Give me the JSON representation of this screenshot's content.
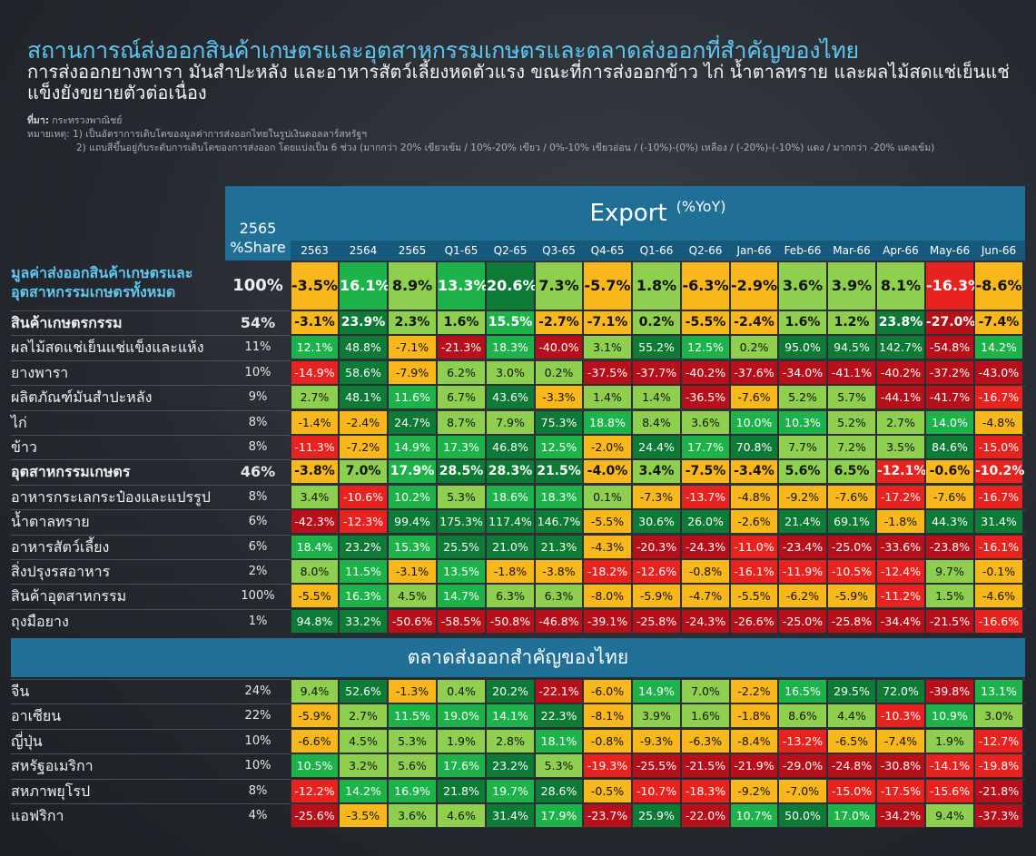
{
  "title": "สถานการณ์ส่งออกสินค้าเกษตรและอุตสาหกรรมเกษตรและตลาดส่งออกที่สำคัญของไทย",
  "subtitle": "การส่งออกยางพารา มันสำปะหลัง และอาหารสัตว์เลี้ยงหดตัวแรง ขณะที่การส่งออกข้าว ไก่ น้ำตาลทราย และผลไม้สดแช่เย็นแช่แข็งยังขยายตัวต่อเนื่อง",
  "notes": {
    "source_label": "ที่มา:",
    "source": "กระทรวงพาณิชย์",
    "note1_label": "หมายเหตุ:",
    "note1": "1) เป็นอัตราการเติบโตของมูลค่าการส่งออกไทยในรูปเงินดอลลาร์สหรัฐฯ",
    "note2": "2) แถบสีขึ้นอยู่กับระดับการเติบโตของการส่งออก โดยแบ่งเป็น 6 ช่วง (มากกว่า 20% เขียวเข้ม / 10%-20% เขียว / 0%-10% เขียวอ่อน / (-10%)-(0%) เหลือง / (-20%)-(-10%) แดง / มากกว่า -20% แดงเข้ม)"
  },
  "header": {
    "export": "Export",
    "unit": "(%YoY)",
    "share_line1": "2565",
    "share_line2": "%Share",
    "market_section": "ตลาดส่งออกสำคัญของไทย"
  },
  "colors": {
    "dark_green": "#0d7a35",
    "green": "#1db34a",
    "light_green": "#8fcf4f",
    "yellow": "#f8b81c",
    "red": "#e8231f",
    "dark_red": "#b8101b",
    "header_blue": "#1f6f97"
  },
  "chart_data": {
    "type": "table",
    "columns": [
      "2563",
      "2564",
      "2565",
      "Q1-65",
      "Q2-65",
      "Q3-65",
      "Q4-65",
      "Q1-66",
      "Q2-66",
      "Jan-66",
      "Feb-66",
      "Mar-66",
      "Apr-66",
      "May-66",
      "Jun-66"
    ],
    "rows": [
      {
        "label": "มูลค่าส่งออกสินค้าเกษตรและ",
        "label2": "อุตสาหกรรมเกษตรทั้งหมด",
        "share": "100%",
        "style": "top",
        "values": [
          "-3.5%",
          "16.1%",
          "8.9%",
          "13.3%",
          "20.6%",
          "7.3%",
          "-5.7%",
          "1.8%",
          "-6.3%",
          "-2.9%",
          "3.6%",
          "3.9%",
          "8.1%",
          "-16.3%",
          "-8.6%"
        ]
      },
      {
        "label": "สินค้าเกษตรกรรม",
        "share": "54%",
        "style": "bold",
        "values": [
          "-3.1%",
          "23.9%",
          "2.3%",
          "1.6%",
          "15.5%",
          "-2.7%",
          "-7.1%",
          "0.2%",
          "-5.5%",
          "-2.4%",
          "1.6%",
          "1.2%",
          "23.8%",
          "-27.0%",
          "-7.4%"
        ]
      },
      {
        "label": "ผลไม้สดแช่เย็นแช่แข็งและแห้ง",
        "share": "11%",
        "style": "normal",
        "values": [
          "12.1%",
          "48.8%",
          "-7.1%",
          "-21.3%",
          "18.3%",
          "-40.0%",
          "3.1%",
          "55.2%",
          "12.5%",
          "0.2%",
          "95.0%",
          "94.5%",
          "142.7%",
          "-54.8%",
          "14.2%"
        ]
      },
      {
        "label": "ยางพารา",
        "share": "10%",
        "style": "normal",
        "values": [
          "-14.9%",
          "58.6%",
          "-7.9%",
          "6.2%",
          "3.0%",
          "0.2%",
          "-37.5%",
          "-37.7%",
          "-40.2%",
          "-37.6%",
          "-34.0%",
          "-41.1%",
          "-40.2%",
          "-37.2%",
          "-43.0%"
        ]
      },
      {
        "label": "ผลิตภัณฑ์มันสำปะหลัง",
        "share": "9%",
        "style": "normal",
        "values": [
          "2.7%",
          "48.1%",
          "11.6%",
          "6.7%",
          "43.6%",
          "-3.3%",
          "1.4%",
          "1.4%",
          "-36.5%",
          "-7.6%",
          "5.2%",
          "5.7%",
          "-44.1%",
          "-41.7%",
          "-16.7%"
        ]
      },
      {
        "label": "ไก่",
        "share": "8%",
        "style": "normal",
        "values": [
          "-1.4%",
          "-2.4%",
          "24.7%",
          "8.7%",
          "7.9%",
          "75.3%",
          "18.8%",
          "8.4%",
          "3.6%",
          "10.0%",
          "10.3%",
          "5.2%",
          "2.7%",
          "14.0%",
          "-4.8%"
        ]
      },
      {
        "label": "ข้าว",
        "share": "8%",
        "style": "normal",
        "values": [
          "-11.3%",
          "-7.2%",
          "14.9%",
          "17.3%",
          "46.8%",
          "12.5%",
          "-2.0%",
          "24.4%",
          "17.7%",
          "70.8%",
          "7.7%",
          "7.2%",
          "3.5%",
          "84.6%",
          "-15.0%"
        ]
      },
      {
        "label": "อุตสาหกรรมเกษตร",
        "share": "46%",
        "style": "bold",
        "values": [
          "-3.8%",
          "7.0%",
          "17.9%",
          "28.5%",
          "28.3%",
          "21.5%",
          "-4.0%",
          "3.4%",
          "-7.5%",
          "-3.4%",
          "5.6%",
          "6.5%",
          "-12.1%",
          "-0.6%",
          "-10.2%"
        ]
      },
      {
        "label": "อาหารกระเลกระป๋องและแปรรูป",
        "share": "8%",
        "style": "normal",
        "values": [
          "3.4%",
          "-10.6%",
          "10.2%",
          "5.3%",
          "18.6%",
          "18.3%",
          "0.1%",
          "-7.3%",
          "-13.7%",
          "-4.8%",
          "-9.2%",
          "-7.6%",
          "-17.2%",
          "-7.6%",
          "-16.7%"
        ]
      },
      {
        "label": "น้ำตาลทราย",
        "share": "6%",
        "style": "normal",
        "values": [
          "-42.3%",
          "-12.3%",
          "99.4%",
          "175.3%",
          "117.4%",
          "146.7%",
          "-5.5%",
          "30.6%",
          "26.0%",
          "-2.6%",
          "21.4%",
          "69.1%",
          "-1.8%",
          "44.3%",
          "31.4%"
        ]
      },
      {
        "label": "อาหารสัตว์เลี้ยง",
        "share": "6%",
        "style": "normal",
        "values": [
          "18.4%",
          "23.2%",
          "15.3%",
          "25.5%",
          "21.0%",
          "21.3%",
          "-4.3%",
          "-20.3%",
          "-24.3%",
          "-11.0%",
          "-23.4%",
          "-25.0%",
          "-33.6%",
          "-23.8%",
          "-16.1%"
        ]
      },
      {
        "label": "สิ่งปรุงรสอาหาร",
        "share": "2%",
        "style": "normal",
        "values": [
          "8.0%",
          "11.5%",
          "-3.1%",
          "13.5%",
          "-1.8%",
          "-3.8%",
          "-18.2%",
          "-12.6%",
          "-0.8%",
          "-16.1%",
          "-11.9%",
          "-10.5%",
          "-12.4%",
          "9.7%",
          "-0.1%"
        ]
      },
      {
        "label": "สินค้าอุตสาหกรรม",
        "share": "100%",
        "style": "normal",
        "values": [
          "-5.5%",
          "16.3%",
          "4.5%",
          "14.7%",
          "6.3%",
          "6.3%",
          "-8.0%",
          "-5.9%",
          "-4.7%",
          "-5.5%",
          "-6.2%",
          "-5.9%",
          "-11.2%",
          "1.5%",
          "-4.6%"
        ]
      },
      {
        "label": "ถุงมือยาง",
        "share": "1%",
        "style": "normal",
        "values": [
          "94.8%",
          "33.2%",
          "-50.6%",
          "-58.5%",
          "-50.8%",
          "-46.8%",
          "-39.1%",
          "-25.8%",
          "-24.3%",
          "-26.6%",
          "-25.0%",
          "-25.8%",
          "-34.4%",
          "-21.5%",
          "-16.6%"
        ]
      }
    ],
    "market_rows": [
      {
        "label": "จีน",
        "share": "24%",
        "values": [
          "9.4%",
          "52.6%",
          "-1.3%",
          "0.4%",
          "20.2%",
          "-22.1%",
          "-6.0%",
          "14.9%",
          "7.0%",
          "-2.2%",
          "16.5%",
          "29.5%",
          "72.0%",
          "-39.8%",
          "13.1%"
        ]
      },
      {
        "label": "อาเซียน",
        "share": "22%",
        "values": [
          "-5.9%",
          "2.7%",
          "11.5%",
          "19.0%",
          "14.1%",
          "22.3%",
          "-8.1%",
          "3.9%",
          "1.6%",
          "-1.8%",
          "8.6%",
          "4.4%",
          "-10.3%",
          "10.9%",
          "3.0%"
        ]
      },
      {
        "label": "ญี่ปุ่น",
        "share": "10%",
        "values": [
          "-6.6%",
          "4.5%",
          "5.3%",
          "1.9%",
          "2.8%",
          "18.1%",
          "-0.8%",
          "-9.3%",
          "-6.3%",
          "-8.4%",
          "-13.2%",
          "-6.5%",
          "-7.4%",
          "1.9%",
          "-12.7%"
        ]
      },
      {
        "label": "สหรัฐอเมริกา",
        "share": "10%",
        "values": [
          "10.5%",
          "3.2%",
          "5.6%",
          "17.6%",
          "23.2%",
          "5.3%",
          "-19.3%",
          "-25.5%",
          "-21.5%",
          "-21.9%",
          "-29.0%",
          "-24.8%",
          "-30.8%",
          "-14.1%",
          "-19.8%"
        ]
      },
      {
        "label": "สหภาพยุโรป",
        "share": "8%",
        "values": [
          "-12.2%",
          "14.2%",
          "16.9%",
          "21.8%",
          "19.7%",
          "28.6%",
          "-0.5%",
          "-10.7%",
          "-18.3%",
          "-9.2%",
          "-7.0%",
          "-15.0%",
          "-17.5%",
          "-15.6%",
          "-21.8%"
        ]
      },
      {
        "label": "แอฟริกา",
        "share": "4%",
        "values": [
          "-25.6%",
          "-3.5%",
          "3.6%",
          "4.6%",
          "31.4%",
          "17.9%",
          "-23.7%",
          "25.9%",
          "-22.0%",
          "10.7%",
          "50.0%",
          "17.0%",
          "-34.2%",
          "9.4%",
          "-37.3%"
        ]
      }
    ]
  }
}
